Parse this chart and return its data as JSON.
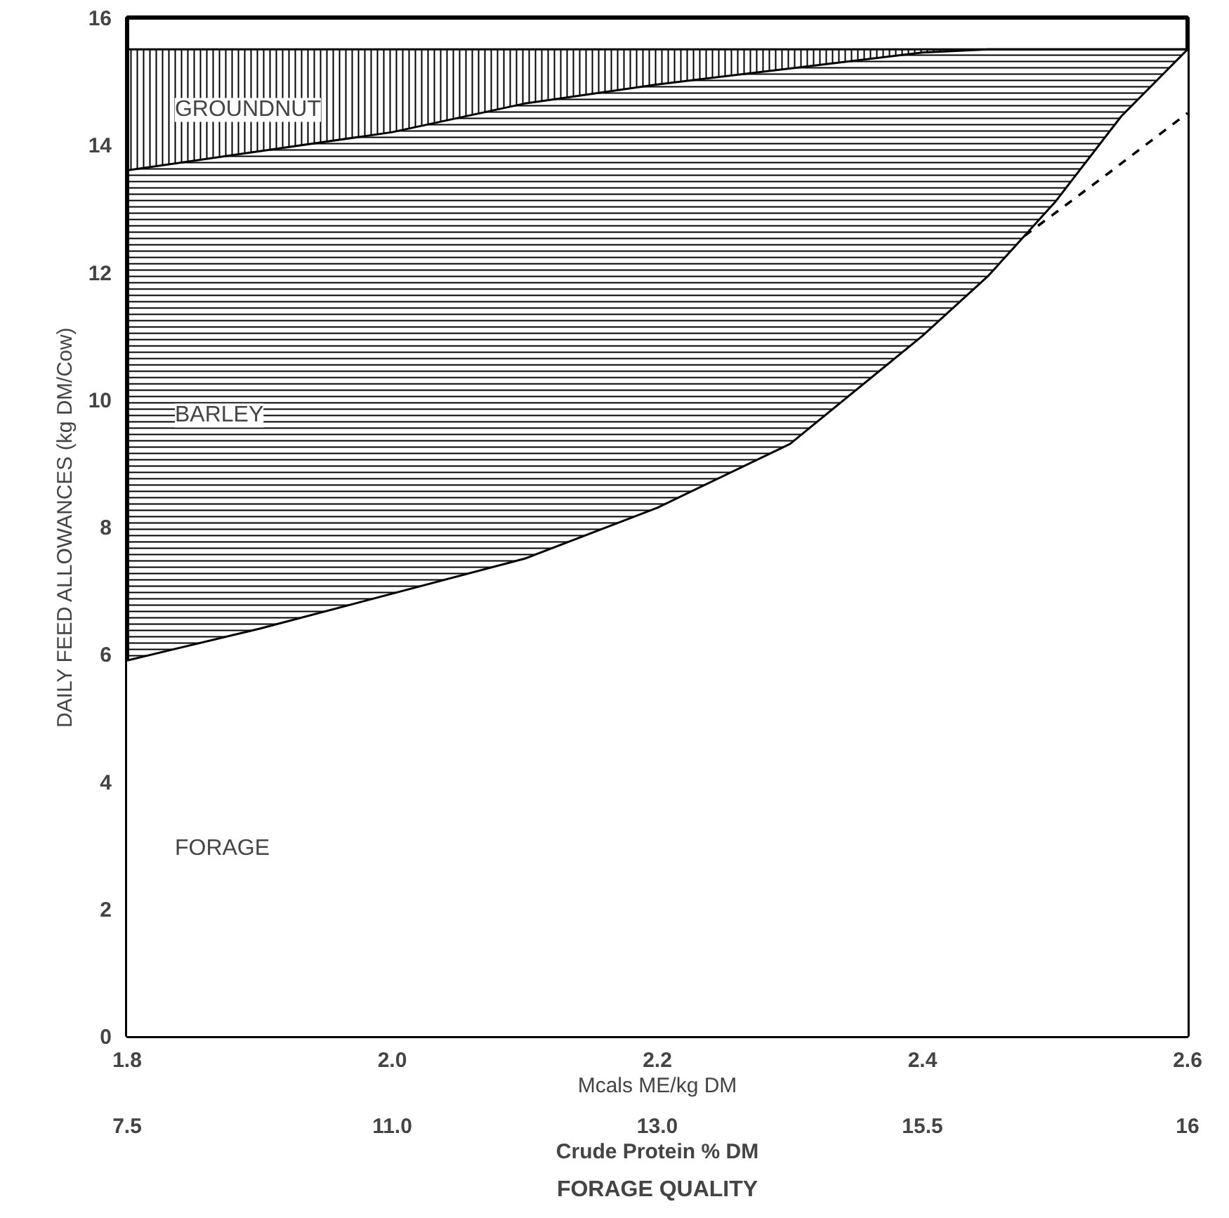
{
  "chart_data": {
    "type": "area",
    "stacked": true,
    "x": [
      1.8,
      1.9,
      2.0,
      2.1,
      2.2,
      2.3,
      2.4,
      2.45,
      2.5,
      2.55,
      2.6
    ],
    "series": [
      {
        "name": "FORAGE",
        "color": "#ffffff",
        "values": [
          5.9,
          6.4,
          6.95,
          7.5,
          8.3,
          9.3,
          11.0,
          11.95,
          13.1,
          14.45,
          15.5
        ]
      },
      {
        "name": "BARLEY",
        "color": "#000000",
        "values": [
          7.7,
          7.5,
          7.25,
          7.15,
          6.65,
          5.9,
          4.45,
          3.55,
          2.4,
          1.05,
          0.0
        ]
      },
      {
        "name": "GROUNDNUT",
        "color": "#000000",
        "values": [
          1.9,
          1.6,
          1.3,
          0.85,
          0.55,
          0.3,
          0.05,
          0.0,
          0.0,
          0.0,
          0.0
        ]
      },
      {
        "type": "line",
        "color": "#000000",
        "line_style": "dashed",
        "x": [
          2.477,
          2.54,
          2.6
        ],
        "values": [
          12.57,
          13.55,
          14.5
        ]
      }
    ],
    "xlabel": "Mcals ME/kg DM",
    "ylabel": "DAILY FEED ALLOWANCES (kg DM/Cow)",
    "annotations": [
      "7.5",
      "11.0",
      "13.0",
      "15.5",
      "16",
      "Crude Protein % DM",
      "FORAGE QUALITY"
    ],
    "xlim": [
      1.8,
      2.6
    ],
    "xticks": [
      {
        "value": 1.8,
        "label": "1.8"
      },
      {
        "value": 2.0,
        "label": "2.0"
      },
      {
        "value": 2.2,
        "label": "2.2"
      },
      {
        "value": 2.4,
        "label": "2.4"
      },
      {
        "value": 2.6,
        "label": "2.6"
      }
    ],
    "ylim": [
      0,
      16
    ],
    "yticks": [
      0,
      2,
      4,
      6,
      8,
      10,
      12,
      14,
      16
    ],
    "grid": false
  }
}
